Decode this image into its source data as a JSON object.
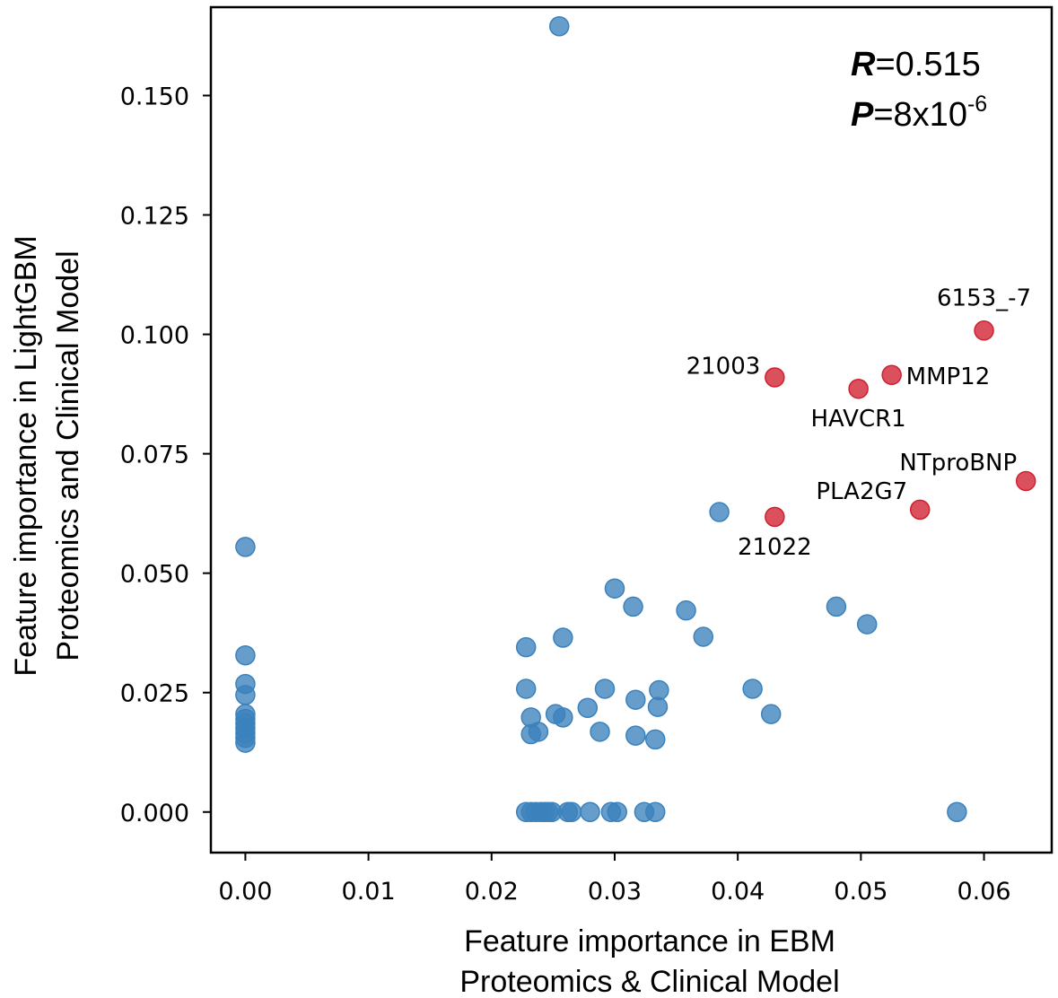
{
  "chart_data": {
    "type": "scatter",
    "xlabel_lines": [
      "Feature importance in EBM",
      "Proteomics & Clinical Model"
    ],
    "ylabel_lines": [
      "Feature importance in LightGBM",
      "Proteomics and Clinical Model"
    ],
    "xlim": [
      -0.0028,
      0.0655
    ],
    "ylim": [
      -0.0085,
      0.1685
    ],
    "xticks": [
      0.0,
      0.01,
      0.02,
      0.03,
      0.04,
      0.05,
      0.06
    ],
    "xtick_labels": [
      "0.00",
      "0.01",
      "0.02",
      "0.03",
      "0.04",
      "0.05",
      "0.06"
    ],
    "yticks": [
      0.0,
      0.025,
      0.05,
      0.075,
      0.1,
      0.125,
      0.15
    ],
    "ytick_labels": [
      "0.000",
      "0.025",
      "0.050",
      "0.075",
      "0.100",
      "0.125",
      "0.150"
    ],
    "grid": false,
    "stats": {
      "r_label": "R",
      "r_value": "=0.515",
      "p_label": "P",
      "p_value": "=8x10",
      "p_exponent": "-6"
    },
    "colors": {
      "default": "#3b82bd",
      "highlight": "#d0202f"
    },
    "series": [
      {
        "color": "#3b82bd",
        "points": [
          [
            0.0,
            0.0555
          ],
          [
            0.0,
            0.0328
          ],
          [
            0.0,
            0.0268
          ],
          [
            0.0,
            0.0245
          ],
          [
            0.0,
            0.0205
          ],
          [
            0.0,
            0.0195
          ],
          [
            0.0,
            0.0185
          ],
          [
            0.0,
            0.0175
          ],
          [
            0.0,
            0.0165
          ],
          [
            0.0,
            0.0155
          ],
          [
            0.0,
            0.0145
          ],
          [
            0.0255,
            0.1645
          ],
          [
            0.0228,
            0.0345
          ],
          [
            0.0228,
            0.0258
          ],
          [
            0.0232,
            0.0198
          ],
          [
            0.0232,
            0.0163
          ],
          [
            0.0238,
            0.0168
          ],
          [
            0.0252,
            0.0205
          ],
          [
            0.0258,
            0.0198
          ],
          [
            0.0258,
            0.0365
          ],
          [
            0.0278,
            0.0218
          ],
          [
            0.0288,
            0.0168
          ],
          [
            0.0292,
            0.0258
          ],
          [
            0.03,
            0.0468
          ],
          [
            0.0315,
            0.043
          ],
          [
            0.0317,
            0.0235
          ],
          [
            0.0317,
            0.016
          ],
          [
            0.0333,
            0.0152
          ],
          [
            0.0335,
            0.022
          ],
          [
            0.0336,
            0.0255
          ],
          [
            0.0358,
            0.0422
          ],
          [
            0.0372,
            0.0367
          ],
          [
            0.0385,
            0.0628
          ],
          [
            0.0412,
            0.0258
          ],
          [
            0.0427,
            0.0205
          ],
          [
            0.048,
            0.043
          ],
          [
            0.0505,
            0.0393
          ],
          [
            0.0578,
            0.0
          ],
          [
            0.0228,
            0.0
          ],
          [
            0.0232,
            0.0
          ],
          [
            0.0236,
            0.0
          ],
          [
            0.024,
            0.0
          ],
          [
            0.0243,
            0.0
          ],
          [
            0.0246,
            0.0
          ],
          [
            0.0249,
            0.0
          ],
          [
            0.0262,
            0.0
          ],
          [
            0.0265,
            0.0
          ],
          [
            0.028,
            0.0
          ],
          [
            0.0297,
            0.0
          ],
          [
            0.0302,
            0.0
          ],
          [
            0.0324,
            0.0
          ],
          [
            0.0333,
            0.0
          ]
        ]
      },
      {
        "color": "#d0202f",
        "points": [
          [
            0.06,
            0.1008
          ],
          [
            0.0525,
            0.0915
          ],
          [
            0.0498,
            0.0886
          ],
          [
            0.043,
            0.091
          ],
          [
            0.0634,
            0.0693
          ],
          [
            0.0548,
            0.0633
          ],
          [
            0.043,
            0.0618
          ]
        ]
      }
    ],
    "annotations": [
      {
        "label": "6153_-7",
        "x": 0.06,
        "y": 0.1008,
        "pos": "above"
      },
      {
        "label": "MMP12",
        "x": 0.0525,
        "y": 0.0915,
        "pos": "right"
      },
      {
        "label": "HAVCR1",
        "x": 0.0498,
        "y": 0.0886,
        "pos": "below"
      },
      {
        "label": "21003",
        "x": 0.043,
        "y": 0.091,
        "pos": "left"
      },
      {
        "label": "NTproBNP",
        "x": 0.0634,
        "y": 0.0693,
        "pos": "above-left"
      },
      {
        "label": "PLA2G7",
        "x": 0.0548,
        "y": 0.0633,
        "pos": "left-high"
      },
      {
        "label": "21022",
        "x": 0.043,
        "y": 0.0618,
        "pos": "below"
      }
    ]
  }
}
